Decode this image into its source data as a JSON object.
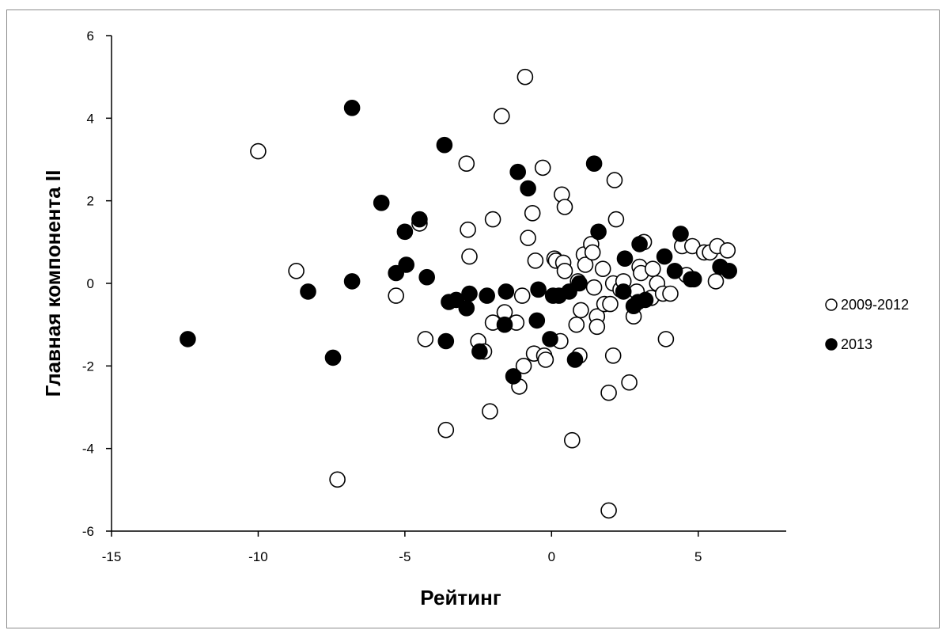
{
  "chart_data": {
    "type": "scatter",
    "title": "",
    "xlabel": "Рейтинг",
    "ylabel": "Главная компонента II",
    "xlim": [
      -15,
      8
    ],
    "ylim": [
      -6,
      6
    ],
    "x_ticks": [
      -15,
      -10,
      -5,
      0,
      5
    ],
    "y_ticks": [
      -6,
      -4,
      -2,
      0,
      2,
      4,
      6
    ],
    "grid": false,
    "legend_position": "right",
    "series": [
      {
        "name": "2009-2012",
        "marker": "hollow-circle",
        "color": "#000000",
        "points": [
          [
            -10.0,
            3.2
          ],
          [
            -8.7,
            0.3
          ],
          [
            -7.3,
            -4.75
          ],
          [
            -5.3,
            -0.3
          ],
          [
            -4.5,
            1.45
          ],
          [
            -4.3,
            -1.35
          ],
          [
            -3.6,
            -3.55
          ],
          [
            -2.9,
            2.9
          ],
          [
            -2.85,
            1.3
          ],
          [
            -2.8,
            0.65
          ],
          [
            -2.5,
            -1.4
          ],
          [
            -2.3,
            -1.65
          ],
          [
            -2.1,
            -3.1
          ],
          [
            -2.0,
            1.55
          ],
          [
            -2.0,
            -0.95
          ],
          [
            -1.7,
            4.05
          ],
          [
            -1.6,
            -0.7
          ],
          [
            -1.2,
            -0.95
          ],
          [
            -1.1,
            -2.5
          ],
          [
            -1.0,
            -0.3
          ],
          [
            -0.95,
            -2.0
          ],
          [
            -0.9,
            5.0
          ],
          [
            -0.8,
            1.1
          ],
          [
            -0.65,
            1.7
          ],
          [
            -0.6,
            -1.7
          ],
          [
            -0.55,
            0.55
          ],
          [
            -0.3,
            2.8
          ],
          [
            -0.25,
            -1.75
          ],
          [
            -0.2,
            -1.85
          ],
          [
            0.1,
            0.6
          ],
          [
            0.15,
            0.55
          ],
          [
            0.3,
            -1.4
          ],
          [
            0.35,
            2.15
          ],
          [
            0.4,
            0.5
          ],
          [
            0.45,
            1.85
          ],
          [
            0.45,
            0.3
          ],
          [
            0.7,
            -3.8
          ],
          [
            0.85,
            -1.0
          ],
          [
            0.9,
            0.05
          ],
          [
            0.95,
            -1.75
          ],
          [
            1.0,
            -0.65
          ],
          [
            1.1,
            0.7
          ],
          [
            1.15,
            0.45
          ],
          [
            1.35,
            0.95
          ],
          [
            1.4,
            0.75
          ],
          [
            1.45,
            -0.1
          ],
          [
            1.55,
            -0.8
          ],
          [
            1.55,
            -1.05
          ],
          [
            1.75,
            0.35
          ],
          [
            1.8,
            -0.5
          ],
          [
            1.95,
            -2.65
          ],
          [
            1.95,
            -5.5
          ],
          [
            2.0,
            -0.5
          ],
          [
            2.1,
            0.0
          ],
          [
            2.1,
            -1.75
          ],
          [
            2.15,
            2.5
          ],
          [
            2.2,
            1.55
          ],
          [
            2.35,
            -0.15
          ],
          [
            2.45,
            0.05
          ],
          [
            2.65,
            -2.4
          ],
          [
            2.8,
            -0.8
          ],
          [
            2.9,
            -0.2
          ],
          [
            3.0,
            0.4
          ],
          [
            3.05,
            0.25
          ],
          [
            3.15,
            1.0
          ],
          [
            3.4,
            -0.35
          ],
          [
            3.45,
            0.35
          ],
          [
            3.6,
            0.0
          ],
          [
            3.8,
            -0.25
          ],
          [
            3.9,
            -1.35
          ],
          [
            4.05,
            -0.25
          ],
          [
            4.45,
            0.9
          ],
          [
            4.6,
            0.2
          ],
          [
            4.8,
            0.9
          ],
          [
            5.2,
            0.75
          ],
          [
            5.4,
            0.75
          ],
          [
            5.6,
            0.05
          ],
          [
            5.65,
            0.9
          ],
          [
            6.0,
            0.8
          ]
        ]
      },
      {
        "name": "2013",
        "marker": "filled-circle",
        "color": "#000000",
        "points": [
          [
            -12.4,
            -1.35
          ],
          [
            -8.3,
            -0.2
          ],
          [
            -7.45,
            -1.8
          ],
          [
            -6.8,
            4.25
          ],
          [
            -6.8,
            0.05
          ],
          [
            -5.8,
            1.95
          ],
          [
            -5.3,
            0.25
          ],
          [
            -5.0,
            1.25
          ],
          [
            -4.95,
            0.45
          ],
          [
            -4.5,
            1.55
          ],
          [
            -4.25,
            0.15
          ],
          [
            -3.65,
            3.35
          ],
          [
            -3.6,
            -1.4
          ],
          [
            -3.5,
            -0.45
          ],
          [
            -3.25,
            -0.4
          ],
          [
            -2.9,
            -0.6
          ],
          [
            -2.8,
            -0.25
          ],
          [
            -2.45,
            -1.65
          ],
          [
            -2.2,
            -0.3
          ],
          [
            -1.6,
            -1.0
          ],
          [
            -1.55,
            -0.2
          ],
          [
            -1.3,
            -2.25
          ],
          [
            -1.15,
            2.7
          ],
          [
            -0.8,
            2.3
          ],
          [
            -0.5,
            -0.9
          ],
          [
            -0.45,
            -0.15
          ],
          [
            -0.05,
            -1.35
          ],
          [
            0.05,
            -0.3
          ],
          [
            0.25,
            -0.3
          ],
          [
            0.6,
            -0.2
          ],
          [
            0.8,
            -1.85
          ],
          [
            0.95,
            0.0
          ],
          [
            1.45,
            2.9
          ],
          [
            1.6,
            1.25
          ],
          [
            2.45,
            -0.2
          ],
          [
            2.5,
            0.6
          ],
          [
            2.8,
            -0.55
          ],
          [
            2.95,
            -0.45
          ],
          [
            3.0,
            0.95
          ],
          [
            3.2,
            -0.4
          ],
          [
            3.85,
            0.65
          ],
          [
            4.2,
            0.3
          ],
          [
            4.4,
            1.2
          ],
          [
            4.75,
            0.1
          ],
          [
            4.85,
            0.1
          ],
          [
            5.75,
            0.4
          ],
          [
            6.05,
            0.3
          ]
        ]
      }
    ]
  }
}
